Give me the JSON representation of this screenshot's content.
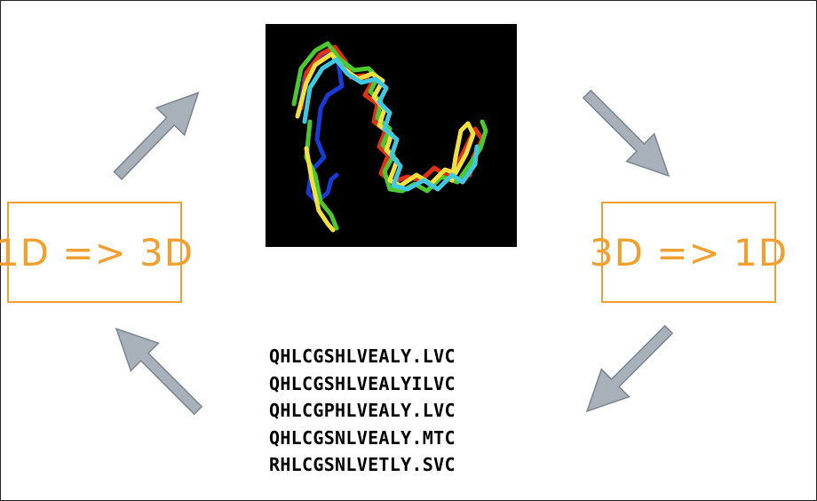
{
  "boxes": {
    "left_label": "1D => 3D",
    "right_label": "3D => 1D"
  },
  "structure": {
    "background": "#000000",
    "chain_colors": [
      "#1a3ad6",
      "#4cc830",
      "#e03018",
      "#f0e040",
      "#40c8e0"
    ]
  },
  "sequences": [
    "QHLCGSHLVEALY.LVC",
    "QHLCGSHLVEALYILVC",
    "QHLCGPHLVEALY.LVC",
    "QHLCGSNLVEALY.MTC",
    "RHLCGSNLVETLY.SVC"
  ],
  "colors": {
    "accent": "#f0a030",
    "arrow_fill": "#a8b0ba",
    "arrow_stroke": "#7d8590"
  }
}
